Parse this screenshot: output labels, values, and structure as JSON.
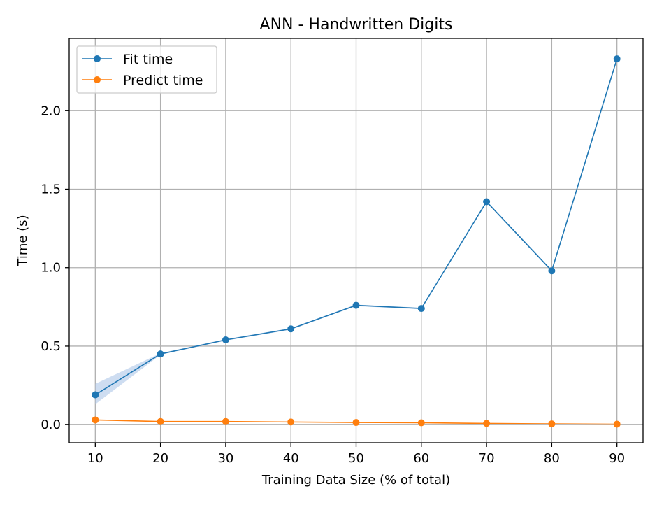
{
  "chart_data": {
    "type": "line",
    "title": "ANN - Handwritten Digits",
    "xlabel": "Training Data Size (% of total)",
    "ylabel": "Time (s)",
    "x": [
      10,
      20,
      30,
      40,
      50,
      60,
      70,
      80,
      90
    ],
    "xlim": [
      6,
      94
    ],
    "ylim": [
      -0.115,
      2.46
    ],
    "xticks": [
      10,
      20,
      30,
      40,
      50,
      60,
      70,
      80,
      90
    ],
    "yticks": [
      0.0,
      0.5,
      1.0,
      1.5,
      2.0
    ],
    "ytick_labels": [
      "0.0",
      "0.5",
      "1.0",
      "1.5",
      "2.0"
    ],
    "grid": true,
    "legend_position": "top-left",
    "series": [
      {
        "name": "Fit time",
        "color": "#1f77b4",
        "band_color": "#aec7e8",
        "values": [
          0.19,
          0.45,
          0.54,
          0.61,
          0.76,
          0.74,
          1.42,
          0.98,
          2.33
        ],
        "band_low": [
          0.13,
          0.445,
          0.535,
          0.605,
          0.755,
          0.735,
          1.415,
          0.975,
          2.325
        ],
        "band_high": [
          0.26,
          0.455,
          0.545,
          0.615,
          0.765,
          0.745,
          1.425,
          0.985,
          2.335
        ]
      },
      {
        "name": "Predict time",
        "color": "#ff7f0e",
        "band_color": "#ffbb78",
        "values": [
          0.03,
          0.02,
          0.02,
          0.017,
          0.014,
          0.012,
          0.008,
          0.005,
          0.003
        ],
        "band_low": [
          0.028,
          0.018,
          0.018,
          0.015,
          0.012,
          0.01,
          0.006,
          0.003,
          0.001
        ],
        "band_high": [
          0.032,
          0.022,
          0.022,
          0.019,
          0.016,
          0.014,
          0.01,
          0.007,
          0.005
        ]
      }
    ]
  }
}
